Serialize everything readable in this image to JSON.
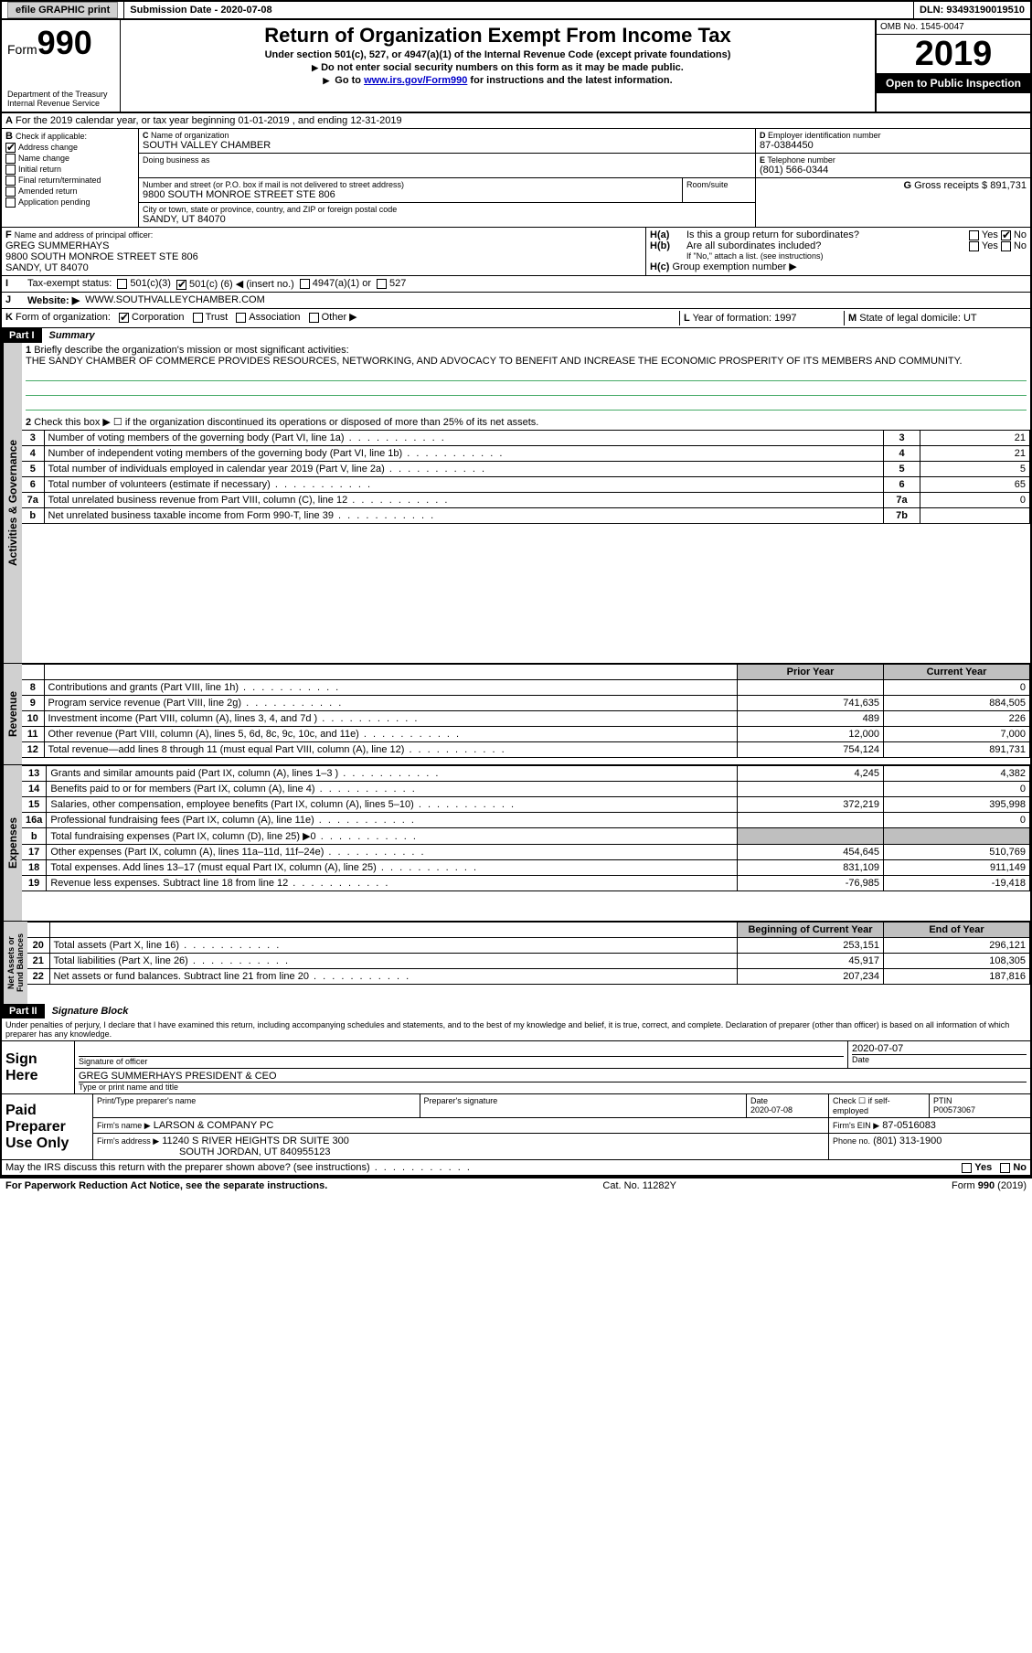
{
  "topbar": {
    "efile": "efile GRAPHIC print",
    "subdate_label": "Submission Date - 2020-07-08",
    "dln_label": "DLN: 93493190019510"
  },
  "header": {
    "form_word": "Form",
    "form_num": "990",
    "dept": "Department of the Treasury",
    "irs": "Internal Revenue Service",
    "title": "Return of Organization Exempt From Income Tax",
    "sub1": "Under section 501(c), 527, or 4947(a)(1) of the Internal Revenue Code (except private foundations)",
    "sub2": "Do not enter social security numbers on this form as it may be made public.",
    "sub3_a": "Go to ",
    "sub3_link": "www.irs.gov/Form990",
    "sub3_b": " for instructions and the latest information.",
    "omb": "OMB No. 1545-0047",
    "year": "2019",
    "openpub": "Open to Public Inspection"
  },
  "periodA": "For the 2019 calendar year, or tax year beginning 01-01-2019   , and ending 12-31-2019",
  "boxB": {
    "label": "Check if applicable:",
    "addr": "Address change",
    "name": "Name change",
    "init": "Initial return",
    "final": "Final return/terminated",
    "amend": "Amended return",
    "app": "Application pending"
  },
  "boxC": {
    "label": "Name of organization",
    "org": "SOUTH VALLEY CHAMBER",
    "dba_label": "Doing business as",
    "addr_label": "Number and street (or P.O. box if mail is not delivered to street address)",
    "room": "Room/suite",
    "addr": "9800 SOUTH MONROE STREET STE 806",
    "city_label": "City or town, state or province, country, and ZIP or foreign postal code",
    "city": "SANDY, UT  84070"
  },
  "boxD": {
    "label": "Employer identification number",
    "val": "87-0384450"
  },
  "boxE": {
    "label": "Telephone number",
    "val": "(801) 566-0344"
  },
  "boxG": {
    "label": "Gross receipts $",
    "val": "891,731"
  },
  "boxF": {
    "label": "Name and address of principal officer:",
    "name": "GREG SUMMERHAYS",
    "addr1": "9800 SOUTH MONROE STREET STE 806",
    "addr2": "SANDY, UT  84070"
  },
  "boxH": {
    "a": "Is this a group return for subordinates?",
    "b": "Are all subordinates included?",
    "note": "If \"No,\" attach a list. (see instructions)",
    "c": "Group exemption number ▶",
    "yes": "Yes",
    "no": "No"
  },
  "boxI": {
    "label": "Tax-exempt status:",
    "c3": "501(c)(3)",
    "c": "501(c) (",
    "cnum": "6",
    "cins": ") ◀ (insert no.)",
    "a4947": "4947(a)(1) or",
    "s527": "527"
  },
  "boxJ": {
    "label": "Website: ▶",
    "val": "WWW.SOUTHVALLEYCHAMBER.COM"
  },
  "boxK": {
    "label": "Form of organization:",
    "corp": "Corporation",
    "trust": "Trust",
    "assoc": "Association",
    "other": "Other ▶"
  },
  "boxL": {
    "label": "Year of formation:",
    "val": "1997"
  },
  "boxM": {
    "label": "State of legal domicile:",
    "val": "UT"
  },
  "part1": {
    "num": "Part I",
    "title": "Summary"
  },
  "q1": {
    "label": "Briefly describe the organization's mission or most significant activities:",
    "text": "THE SANDY CHAMBER OF COMMERCE PROVIDES RESOURCES, NETWORKING, AND ADVOCACY TO BENEFIT AND INCREASE THE ECONOMIC PROSPERITY OF ITS MEMBERS AND COMMUNITY."
  },
  "q2": "Check this box ▶ ☐ if the organization discontinued its operations or disposed of more than 25% of its net assets.",
  "gov_lines": [
    {
      "n": "3",
      "d": "Number of voting members of the governing body (Part VI, line 1a)",
      "box": "3",
      "v": "21"
    },
    {
      "n": "4",
      "d": "Number of independent voting members of the governing body (Part VI, line 1b)",
      "box": "4",
      "v": "21"
    },
    {
      "n": "5",
      "d": "Total number of individuals employed in calendar year 2019 (Part V, line 2a)",
      "box": "5",
      "v": "5"
    },
    {
      "n": "6",
      "d": "Total number of volunteers (estimate if necessary)",
      "box": "6",
      "v": "65"
    },
    {
      "n": "7a",
      "d": "Total unrelated business revenue from Part VIII, column (C), line 12",
      "box": "7a",
      "v": "0"
    },
    {
      "n": "b",
      "d": "Net unrelated business taxable income from Form 990-T, line 39",
      "box": "7b",
      "v": ""
    }
  ],
  "col_hdr": {
    "py": "Prior Year",
    "cy": "Current Year"
  },
  "rev_lines": [
    {
      "n": "8",
      "d": "Contributions and grants (Part VIII, line 1h)",
      "py": "",
      "cy": "0"
    },
    {
      "n": "9",
      "d": "Program service revenue (Part VIII, line 2g)",
      "py": "741,635",
      "cy": "884,505"
    },
    {
      "n": "10",
      "d": "Investment income (Part VIII, column (A), lines 3, 4, and 7d )",
      "py": "489",
      "cy": "226"
    },
    {
      "n": "11",
      "d": "Other revenue (Part VIII, column (A), lines 5, 6d, 8c, 9c, 10c, and 11e)",
      "py": "12,000",
      "cy": "7,000"
    },
    {
      "n": "12",
      "d": "Total revenue—add lines 8 through 11 (must equal Part VIII, column (A), line 12)",
      "py": "754,124",
      "cy": "891,731"
    }
  ],
  "exp_lines": [
    {
      "n": "13",
      "d": "Grants and similar amounts paid (Part IX, column (A), lines 1–3 )",
      "py": "4,245",
      "cy": "4,382"
    },
    {
      "n": "14",
      "d": "Benefits paid to or for members (Part IX, column (A), line 4)",
      "py": "",
      "cy": "0"
    },
    {
      "n": "15",
      "d": "Salaries, other compensation, employee benefits (Part IX, column (A), lines 5–10)",
      "py": "372,219",
      "cy": "395,998"
    },
    {
      "n": "16a",
      "d": "Professional fundraising fees (Part IX, column (A), line 11e)",
      "py": "",
      "cy": "0"
    },
    {
      "n": "b",
      "d": "Total fundraising expenses (Part IX, column (D), line 25) ▶0",
      "py": "GRAY",
      "cy": "GRAY"
    },
    {
      "n": "17",
      "d": "Other expenses (Part IX, column (A), lines 11a–11d, 11f–24e)",
      "py": "454,645",
      "cy": "510,769"
    },
    {
      "n": "18",
      "d": "Total expenses. Add lines 13–17 (must equal Part IX, column (A), line 25)",
      "py": "831,109",
      "cy": "911,149"
    },
    {
      "n": "19",
      "d": "Revenue less expenses. Subtract line 18 from line 12",
      "py": "-76,985",
      "cy": "-19,418"
    }
  ],
  "na_hdr": {
    "b": "Beginning of Current Year",
    "e": "End of Year"
  },
  "na_lines": [
    {
      "n": "20",
      "d": "Total assets (Part X, line 16)",
      "py": "253,151",
      "cy": "296,121"
    },
    {
      "n": "21",
      "d": "Total liabilities (Part X, line 26)",
      "py": "45,917",
      "cy": "108,305"
    },
    {
      "n": "22",
      "d": "Net assets or fund balances. Subtract line 21 from line 20",
      "py": "207,234",
      "cy": "187,816"
    }
  ],
  "part2": {
    "num": "Part II",
    "title": "Signature Block"
  },
  "penalties": "Under penalties of perjury, I declare that I have examined this return, including accompanying schedules and statements, and to the best of my knowledge and belief, it is true, correct, and complete. Declaration of preparer (other than officer) is based on all information of which preparer has any knowledge.",
  "sign": {
    "here": "Sign Here",
    "sigoff": "Signature of officer",
    "date": "Date",
    "dateval": "2020-07-07",
    "name": "GREG SUMMERHAYS  PRESIDENT & CEO",
    "nametype": "Type or print name and title"
  },
  "paid": {
    "title": "Paid Preparer Use Only",
    "pt_name": "Print/Type preparer's name",
    "pt_sig": "Preparer's signature",
    "pt_date": "Date",
    "pt_dateval": "2020-07-08",
    "pt_chk": "Check ☐ if self-employed",
    "ptin_l": "PTIN",
    "ptin": "P00573067",
    "firm_l": "Firm's name   ▶",
    "firm": "LARSON & COMPANY PC",
    "fein_l": "Firm's EIN ▶",
    "fein": "87-0516083",
    "faddr_l": "Firm's address ▶",
    "faddr1": "11240 S RIVER HEIGHTS DR SUITE 300",
    "faddr2": "SOUTH JORDAN, UT  840955123",
    "phone_l": "Phone no.",
    "phone": "(801) 313-1900"
  },
  "discuss": "May the IRS discuss this return with the preparer shown above? (see instructions)",
  "footer": {
    "pra": "For Paperwork Reduction Act Notice, see the separate instructions.",
    "cat": "Cat. No. 11282Y",
    "form": "Form 990 (2019)"
  },
  "tabs": {
    "ag": "Activities & Governance",
    "rev": "Revenue",
    "exp": "Expenses",
    "na": "Net Assets or Fund Balances"
  }
}
